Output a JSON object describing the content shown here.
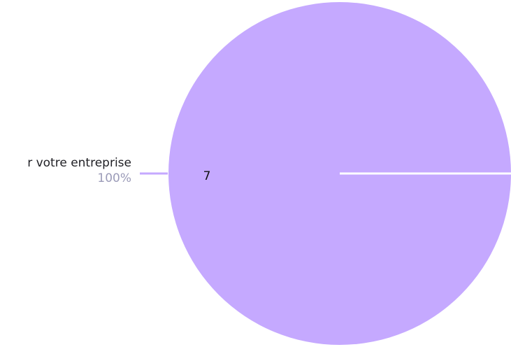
{
  "chart_data": {
    "type": "pie",
    "series": [
      {
        "name": "",
        "values": [
          7
        ]
      }
    ],
    "slices": [
      {
        "label": "r votre entreprise",
        "value": 7,
        "value_label": "7",
        "percent_label": "100%",
        "percent": 100,
        "color": "#c5a9ff"
      }
    ],
    "title": "",
    "legend": "none"
  },
  "colors": {
    "background": "#ffffff",
    "slice": "#c5a9ff",
    "seam": "#ffffff",
    "percent_text": "#9b9bb8",
    "label_text": "#1f1f24"
  }
}
